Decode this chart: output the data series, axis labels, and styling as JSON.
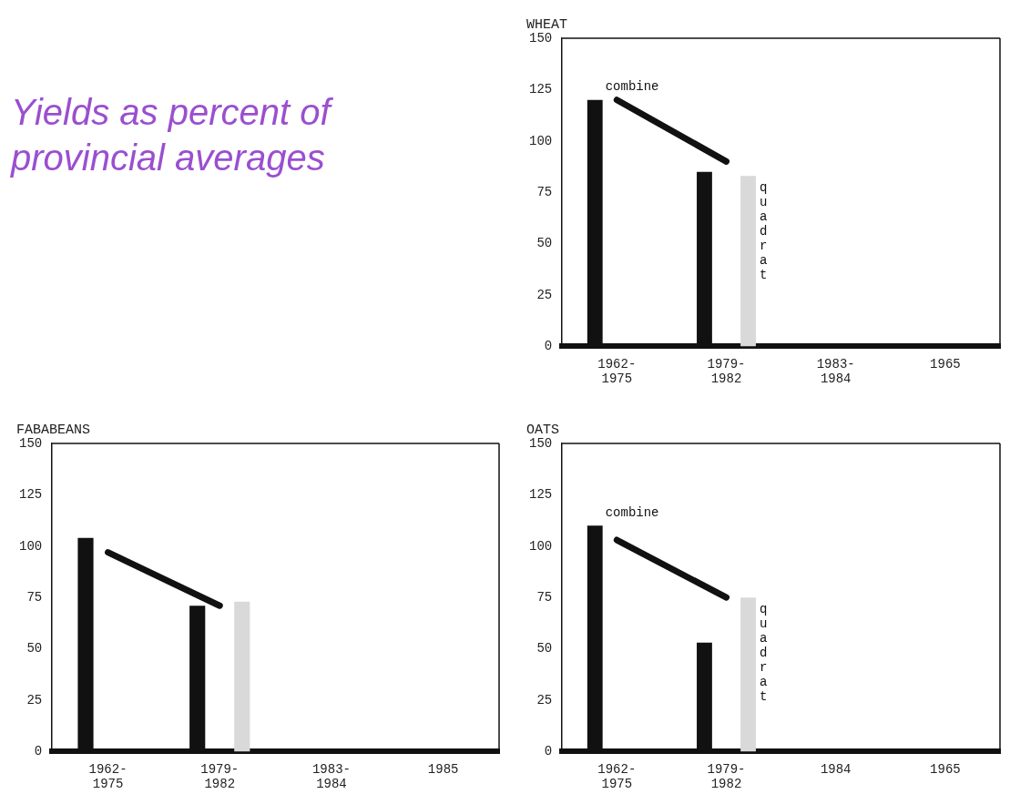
{
  "chart_data": [
    {
      "type": "other",
      "title": "Yields as percent of provincial averages"
    },
    {
      "type": "bar",
      "title": "WHEAT",
      "categories": [
        "1962- 1975",
        "1979- 1982",
        "1983- 1984",
        "1965"
      ],
      "ylim": [
        0,
        150
      ],
      "yticks": [
        0,
        25,
        50,
        75,
        100,
        125,
        150
      ],
      "grid": false,
      "legend": false,
      "series": [
        {
          "name": "combine",
          "color": "#111111",
          "values": [
            120,
            85,
            null,
            null
          ]
        },
        {
          "name": "quadrat",
          "color": "#d9d9d9",
          "values": [
            null,
            83,
            null,
            null
          ]
        },
        {
          "type": "line",
          "color": "#111111",
          "marker": "none",
          "values": [
            120,
            90,
            null,
            null
          ]
        }
      ]
    },
    {
      "type": "bar",
      "title": "FABABEANS",
      "categories": [
        "1962- 1975",
        "1979- 1982",
        "1983- 1984",
        "1985"
      ],
      "ylim": [
        0,
        150
      ],
      "yticks": [
        0,
        25,
        50,
        75,
        100,
        125,
        150
      ],
      "grid": false,
      "legend": false,
      "series": [
        {
          "color": "#111111",
          "values": [
            104,
            71,
            null,
            null
          ]
        },
        {
          "color": "#d9d9d9",
          "values": [
            null,
            73,
            null,
            null
          ]
        },
        {
          "type": "line",
          "color": "#111111",
          "marker": "none",
          "values": [
            97,
            71,
            null,
            null
          ]
        }
      ]
    },
    {
      "type": "bar",
      "title": "OATS",
      "categories": [
        "1962- 1975",
        "1979- 1982",
        "1984",
        "1965"
      ],
      "ylim": [
        0,
        150
      ],
      "yticks": [
        0,
        25,
        50,
        75,
        100,
        125,
        150
      ],
      "grid": false,
      "legend": false,
      "series": [
        {
          "name": "combine",
          "color": "#111111",
          "values": [
            110,
            53,
            null,
            null
          ]
        },
        {
          "name": "quadrat",
          "color": "#d9d9d9",
          "values": [
            null,
            75,
            null,
            null
          ]
        },
        {
          "type": "line",
          "color": "#111111",
          "marker": "none",
          "values": [
            103,
            75,
            null,
            null
          ]
        }
      ]
    }
  ]
}
